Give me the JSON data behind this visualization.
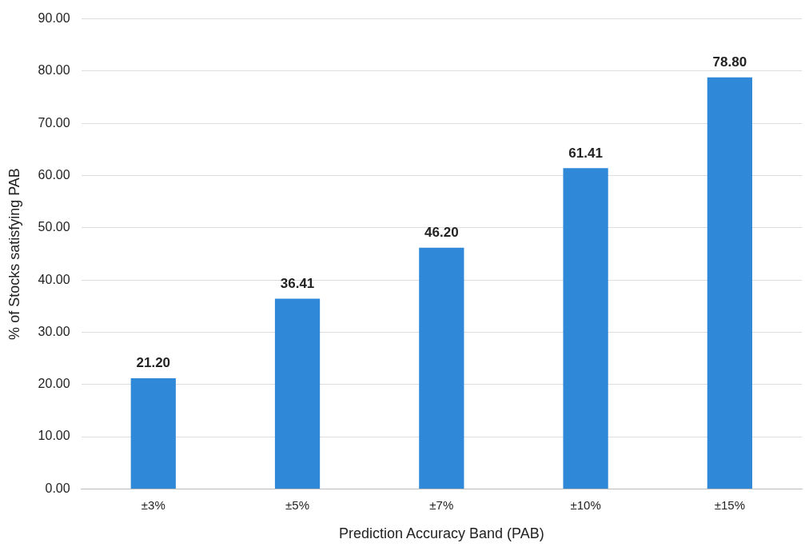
{
  "chart_data": {
    "type": "bar",
    "xlabel": "Prediction Accuracy Band (PAB)",
    "ylabel": "% of Stocks satisfying PAB",
    "categories": [
      "±3%",
      "±5%",
      "±7%",
      "±10%",
      "±15%"
    ],
    "values": [
      21.2,
      36.41,
      46.2,
      61.41,
      78.8
    ],
    "value_labels": [
      "21.20",
      "36.41",
      "46.20",
      "61.41",
      "78.80"
    ],
    "color": "#2f88d8",
    "ylim": [
      0,
      90
    ],
    "yticks": [
      {
        "value": 0,
        "label": "0.00"
      },
      {
        "value": 10,
        "label": "10.00"
      },
      {
        "value": 20,
        "label": "20.00"
      },
      {
        "value": 30,
        "label": "30.00"
      },
      {
        "value": 40,
        "label": "40.00"
      },
      {
        "value": 50,
        "label": "50.00"
      },
      {
        "value": 60,
        "label": "60.00"
      },
      {
        "value": 70,
        "label": "70.00"
      },
      {
        "value": 80,
        "label": "80.00"
      },
      {
        "value": 90,
        "label": "90.00"
      }
    ],
    "grid": "y"
  }
}
